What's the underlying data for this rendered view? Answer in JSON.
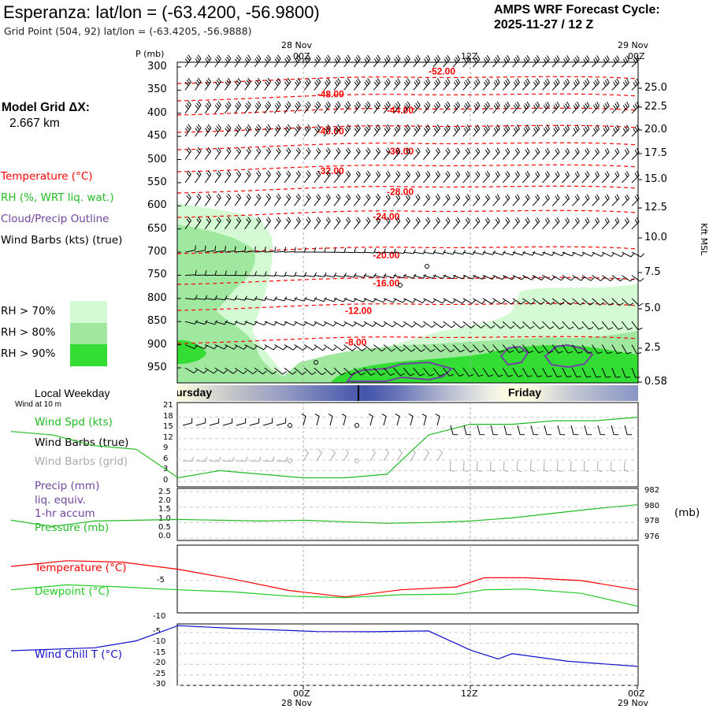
{
  "header": {
    "title": "Esperanza:  lat/lon = (-63.4200, -56.9800)",
    "grid_point": "Grid Point (504, 92) lat/lon = (-63.4205, -56.9888)",
    "cycle_line1": "AMPS WRF Forecast Cycle:",
    "cycle_line2": "2025-11-27 / 12  Z"
  },
  "model_grid": {
    "label": "Model Grid ΔX:",
    "value": "2.667 km"
  },
  "time_axis": {
    "top_date_left": "28 Nov",
    "top_date_right": "29 Nov",
    "ticks": [
      "00Z",
      "12Z",
      "00Z"
    ],
    "bottom_date_left": "28 Nov",
    "bottom_date_right": "29 Nov"
  },
  "pressure_axis": {
    "unit_label": "P (mb)",
    "levels": [
      "300",
      "350",
      "400",
      "450",
      "500",
      "550",
      "600",
      "650",
      "700",
      "750",
      "800",
      "850",
      "900",
      "950"
    ]
  },
  "height_axis": {
    "title": "Kft MSL",
    "labels": [
      "25.0",
      "22.5",
      "20.0",
      "17.5",
      "15.0",
      "12.5",
      "10.0",
      "7.5",
      "5.0",
      "2.5",
      "0.58"
    ]
  },
  "legend": {
    "temperature": "Temperature (°C)",
    "rh": "RH (%, WRT liq. wat.)",
    "cloud": "Cloud/Precip Outline",
    "wind": "Wind Barbs (kts) (true)",
    "rh70": "RH > 70%",
    "rh80": "RH > 80%",
    "rh90": "RH > 90%"
  },
  "weekday_bar": {
    "label": "Local Weekday",
    "sublabel": "Wind at 10 m",
    "day1": "Thursday",
    "day2": "Friday"
  },
  "panel_wind": {
    "spd_label": "Wind Spd (kts)",
    "barbs_true": "Wind Barbs (true)",
    "barbs_grid": "Wind Barbs (grid)",
    "y_ticks": [
      "21",
      "18",
      "15",
      "12",
      "9",
      "6",
      "3",
      "0"
    ]
  },
  "panel_precip": {
    "precip_label": "Precip (mm)",
    "liq_label": "liq. equiv.",
    "accum_label": "1-hr accum",
    "pressure_label": "Pressure (mb)",
    "left_ticks": [
      "2.5",
      "2.0",
      "1.5",
      "1.0",
      "0.5",
      "0.0"
    ],
    "right_ticks": [
      "982",
      "980",
      "978",
      "976"
    ],
    "right_unit": "(mb)"
  },
  "panel_temp": {
    "temp_label": "Temperature (°C)",
    "dew_label": "Dewpoint (°C)",
    "y_ticks": [
      "-5",
      "-10"
    ]
  },
  "panel_chill": {
    "label": "Wind Chill T (°C)",
    "y_ticks": [
      "-5",
      "-10",
      "-15",
      "-20",
      "-25",
      "-30"
    ]
  },
  "colors": {
    "temperature": "#ff0000",
    "rh70": "#d4fad4",
    "rh80": "#a0e8a0",
    "rh90": "#33dd33",
    "cloud": "#7044a0",
    "wind_speed": "#22bb22",
    "dewpoint": "#22cc22",
    "wind_chill": "#1010cc",
    "grid_barbs": "#aaaaaa",
    "day_band_dark": "#4455aa",
    "day_band_light": "#fffde0"
  },
  "chart_data": {
    "type": "line",
    "x_hours": [
      -21,
      -18,
      -15,
      -12,
      -9,
      -6,
      -3,
      0,
      3,
      6,
      9,
      12,
      15,
      18,
      21,
      24
    ],
    "isotherms": [
      {
        "label": "-52.00",
        "value": -52,
        "x_hour": 9,
        "p_mb": 308
      },
      {
        "label": "-48.00",
        "value": -48,
        "x_hour": 1,
        "p_mb": 357
      },
      {
        "label": "-44.00",
        "value": -44,
        "x_hour": 6,
        "p_mb": 392
      },
      {
        "label": "-40.00",
        "value": -40,
        "x_hour": 1,
        "p_mb": 437
      },
      {
        "label": "-36.00",
        "value": -36,
        "x_hour": 6,
        "p_mb": 480
      },
      {
        "label": "-32.00",
        "value": -32,
        "x_hour": 1,
        "p_mb": 523
      },
      {
        "label": "-28.00",
        "value": -28,
        "x_hour": 6,
        "p_mb": 568
      },
      {
        "label": "-24.00",
        "value": -24,
        "x_hour": 5,
        "p_mb": 622
      },
      {
        "label": "-20.00",
        "value": -20,
        "x_hour": 5,
        "p_mb": 705
      },
      {
        "label": "-16.00",
        "value": -16,
        "x_hour": 5,
        "p_mb": 765
      },
      {
        "label": "-12.00",
        "value": -12,
        "x_hour": 3,
        "p_mb": 825
      },
      {
        "label": "-8.00",
        "value": -8,
        "x_hour": 3,
        "p_mb": 893
      }
    ],
    "wind_speed_kts": [
      14,
      13,
      10,
      9,
      1,
      3,
      2,
      1,
      1,
      2,
      13,
      16,
      16,
      17,
      17,
      18
    ],
    "pressure_mb": [
      978.3,
      977.5,
      978.2,
      978.3,
      978.4,
      978.3,
      978.2,
      978.3,
      978.1,
      977.9,
      978.0,
      978.2,
      978.6,
      979.2,
      979.8,
      980.3
    ],
    "precip_mm": [
      0,
      0,
      0,
      0,
      0,
      0,
      0,
      0,
      0,
      0,
      0,
      0,
      0,
      0,
      0,
      0
    ],
    "temperature_c": [
      -3.0,
      -2.2,
      -2.4,
      -3.4,
      -4.8,
      -6.4,
      -7.3,
      -6.3,
      -5.9,
      -4.6,
      -4.6,
      -5.0,
      -6.3
    ],
    "dewpoint_c": [
      -6.3,
      -5.6,
      -5.9,
      -6.3,
      -6.6,
      -7.2,
      -7.4,
      -7.0,
      -6.9,
      -6.3,
      -6.2,
      -6.8,
      -8.6
    ],
    "temp_x_hours": [
      -21,
      -17,
      -13,
      -9,
      -5,
      -1,
      3,
      7,
      11,
      13,
      16,
      20,
      24
    ],
    "wind_chill_c": [
      -13.6,
      -12.2,
      -8.9,
      -1.7,
      -3.0,
      -4.5,
      -4.6,
      -4.2,
      -13.3,
      -17.5,
      -15.0,
      -18.6,
      -21.0
    ],
    "chill_x_hours": [
      -21,
      -15,
      -12,
      -9,
      -5,
      1,
      5,
      9,
      12,
      14,
      15,
      19,
      24
    ]
  }
}
